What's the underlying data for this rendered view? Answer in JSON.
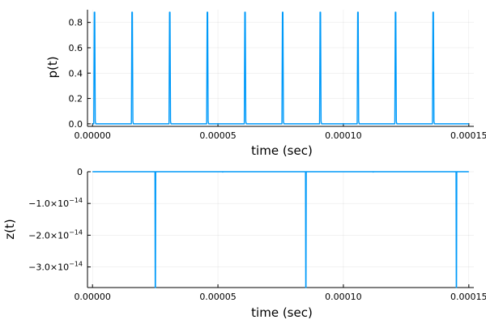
{
  "colors": {
    "series": "#009af9",
    "background": "#ffffff",
    "grid": "#e6e6e6",
    "axis": "#000000"
  },
  "chart_data": [
    {
      "type": "line",
      "title": "",
      "xlabel": "time (sec)",
      "ylabel": "p(t)",
      "grid": true,
      "legend": "none",
      "xlim": [
        -2e-06,
        0.000152
      ],
      "ylim": [
        -0.02,
        0.9
      ],
      "xticks": [
        0,
        5e-05,
        0.0001,
        0.00015
      ],
      "xtick_labels": [
        "0.00000",
        "0.00005",
        "0.00010",
        "0.00015"
      ],
      "yticks": [
        0,
        0.2,
        0.4,
        0.6,
        0.8
      ],
      "ytick_labels": [
        "0.0",
        "0.2",
        "0.4",
        "0.6",
        "0.8"
      ],
      "series": [
        {
          "x": [
            0,
            5e-07,
            7e-07,
            9e-07,
            1.1e-06,
            1.3e-06,
            1.55e-05,
            1.57e-05,
            1.59e-05,
            1.61e-05,
            1.63e-05,
            3.05e-05,
            3.07e-05,
            3.09e-05,
            3.11e-05,
            3.13e-05,
            4.55e-05,
            4.57e-05,
            4.59e-05,
            4.61e-05,
            4.63e-05,
            6.05e-05,
            6.07e-05,
            6.09e-05,
            6.11e-05,
            6.13e-05,
            7.55e-05,
            7.57e-05,
            7.59e-05,
            7.61e-05,
            7.63e-05,
            9.05e-05,
            9.07e-05,
            9.09e-05,
            9.11e-05,
            9.13e-05,
            0.0001055,
            0.0001057,
            0.0001059,
            0.0001061,
            0.0001063,
            0.0001205,
            0.0001207,
            0.0001209,
            0.0001211,
            0.0001213,
            0.0001355,
            0.0001357,
            0.0001359,
            0.0001361,
            0.0001363,
            0.00015
          ],
          "y": [
            0,
            0,
            0.88,
            0.88,
            0.02,
            0,
            0,
            0.88,
            0.88,
            0.02,
            0,
            0,
            0.88,
            0.88,
            0.02,
            0,
            0,
            0.88,
            0.88,
            0.02,
            0,
            0,
            0.88,
            0.88,
            0.02,
            0,
            0,
            0.88,
            0.88,
            0.02,
            0,
            0,
            0.88,
            0.88,
            0.02,
            0,
            0,
            0.88,
            0.88,
            0.02,
            0,
            0,
            0.88,
            0.88,
            0.02,
            0,
            0,
            0.88,
            0.88,
            0.02,
            0,
            0
          ]
        }
      ]
    },
    {
      "type": "line",
      "title": "",
      "xlabel": "time (sec)",
      "ylabel": "z(t)",
      "grid": true,
      "legend": "none",
      "xlim": [
        -2e-06,
        0.000152
      ],
      "ylim": [
        -3.65e-14,
        0
      ],
      "xticks": [
        0,
        5e-05,
        0.0001,
        0.00015
      ],
      "xtick_labels": [
        "0.00000",
        "0.00005",
        "0.00010",
        "0.00015"
      ],
      "yticks": [
        0,
        -1e-14,
        -2e-14,
        -3e-14
      ],
      "ytick_labels": [
        {
          "mantissa": "0",
          "exponent": ""
        },
        {
          "mantissa": "−1.0×10",
          "exponent": "−14"
        },
        {
          "mantissa": "−2.0×10",
          "exponent": "−14"
        },
        {
          "mantissa": "−3.0×10",
          "exponent": "−14"
        }
      ],
      "series": [
        {
          "x": [
            0,
            2.49e-05,
            2.5e-05,
            2.51e-05,
            2.52e-05,
            5.18e-05,
            5.19e-05,
            5.2e-05,
            8.49e-05,
            8.5e-05,
            8.51e-05,
            8.52e-05,
            0.0001118,
            0.0001119,
            0.000112,
            0.0001449,
            0.000145,
            0.0001451,
            0.0001452,
            0.00015
          ],
          "y": [
            0,
            0,
            -3.65e-14,
            -3.65e-14,
            0,
            0,
            -1e-16,
            0,
            0,
            -3.65e-14,
            -3.65e-14,
            0,
            0,
            -1e-16,
            0,
            0,
            -3.65e-14,
            -3.65e-14,
            0,
            0
          ]
        }
      ]
    }
  ]
}
